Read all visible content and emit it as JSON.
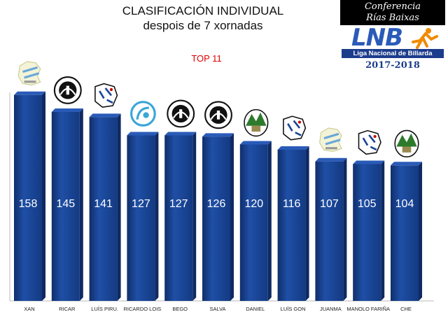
{
  "title": "CLASIFICACIÓN INDIVIDUAL",
  "subtitle": "despois de 7 xornadas",
  "top_label": "TOP 11",
  "logo": {
    "line1": "Conferencia",
    "line2": "Rías Baixas",
    "brand": "LNB",
    "league": "Liga Nacional de Billarda",
    "season": "2017-2018"
  },
  "colors": {
    "bar": "#1a4496",
    "bar_top": "#2a5bb8",
    "bar_side": "#0f2a63",
    "title": "#111111",
    "top_label": "#e00000"
  },
  "chart_data": {
    "type": "bar",
    "title": "CLASIFICACIÓN INDIVIDUAL",
    "subtitle": "despois de 7 xornadas",
    "categories": [
      "XAN",
      "RICAR",
      "LUÍS PIRU.",
      "RICARDO LOIS",
      "BEGO",
      "SALVA",
      "DANIEL",
      "LUÍS GON",
      "JUANMA",
      "MANOLO FARIÑA",
      "CHE"
    ],
    "values": [
      158,
      145,
      141,
      127,
      127,
      126,
      120,
      116,
      107,
      105,
      104
    ],
    "ylim": [
      0,
      160
    ],
    "grid": false,
    "legend": "none",
    "club_icons": [
      "map-club-icon",
      "bridge-club-icon",
      "figure-club-icon",
      "swirl-club-icon",
      "bridge-club-icon",
      "bridge-club-icon",
      "hills-club-icon",
      "figure-club-icon",
      "map-club-icon",
      "figure-club-icon",
      "hills-club-icon"
    ]
  }
}
